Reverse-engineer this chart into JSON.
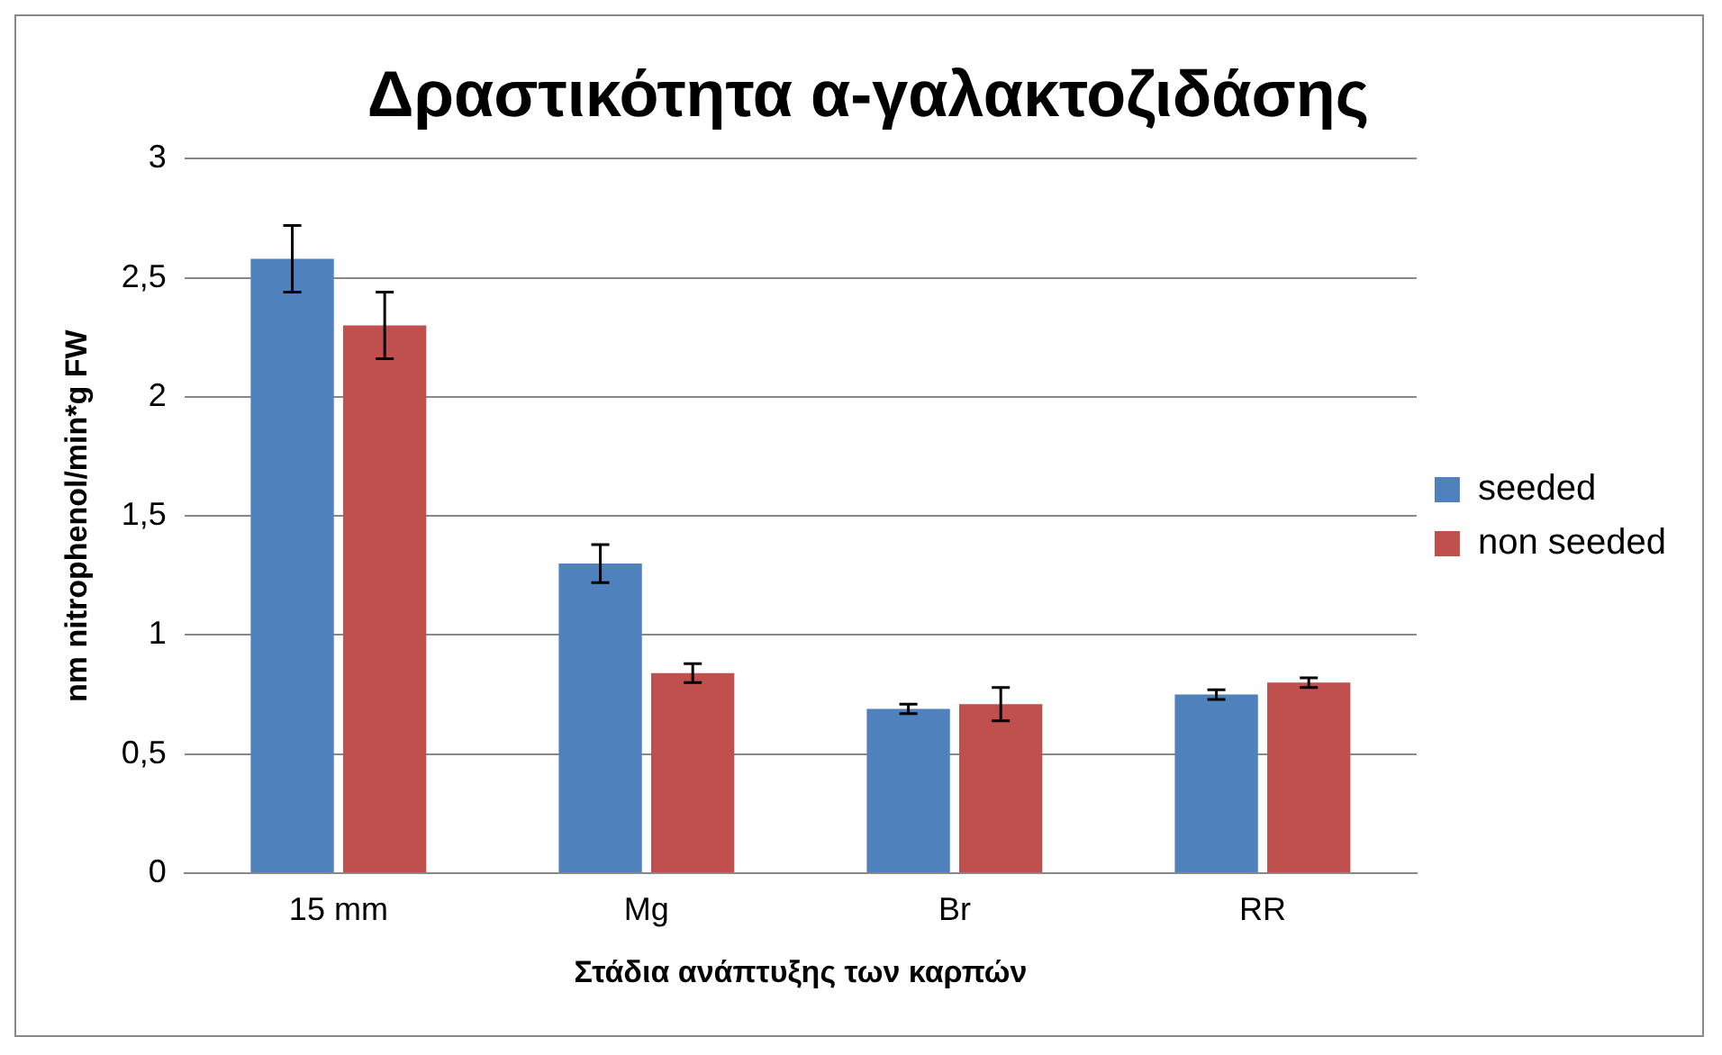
{
  "chart_data": {
    "type": "bar",
    "title": "Δραστικότητα α-γαλακτοζιδάσης",
    "xlabel": "Στάδια ανάπτυξης των καρπών",
    "ylabel": "nm nitrophenol/min*g FW",
    "categories": [
      "15 mm",
      "Mg",
      "Br",
      "RR"
    ],
    "series": [
      {
        "name": "seeded",
        "color": "#4f81bd",
        "values": [
          2.58,
          1.3,
          0.69,
          0.75
        ],
        "errors": [
          0.14,
          0.08,
          0.02,
          0.02
        ]
      },
      {
        "name": "non seeded",
        "color": "#c0504d",
        "values": [
          2.3,
          0.84,
          0.71,
          0.8
        ],
        "errors": [
          0.14,
          0.04,
          0.07,
          0.02
        ]
      }
    ],
    "ylim": [
      0,
      3
    ],
    "yticks": [
      0,
      {
        "value": 0.5,
        "label": "0,5"
      },
      1,
      {
        "value": 1.5,
        "label": "1,5"
      },
      2,
      {
        "value": 2.5,
        "label": "2,5"
      },
      3
    ],
    "grid": "y",
    "legend": "right"
  }
}
